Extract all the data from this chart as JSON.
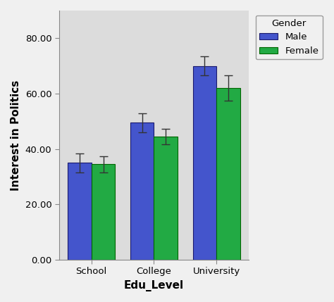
{
  "categories": [
    "School",
    "College",
    "University"
  ],
  "male_values": [
    35.0,
    49.5,
    70.0
  ],
  "female_values": [
    34.5,
    44.5,
    62.0
  ],
  "male_errors": [
    3.5,
    3.5,
    3.5
  ],
  "female_errors": [
    3.0,
    2.8,
    4.5
  ],
  "male_color": "#4455CC",
  "female_color": "#22AA44",
  "xlabel": "Edu_Level",
  "ylabel": "Interest in Politics",
  "ylim": [
    0,
    90
  ],
  "yticks": [
    0.0,
    20.0,
    40.0,
    60.0,
    80.0
  ],
  "ytick_labels": [
    "0.00",
    "20.00",
    "40.00",
    "60.00",
    "80.00"
  ],
  "legend_title": "Gender",
  "legend_labels": [
    "Male",
    "Female"
  ],
  "bar_width": 0.38,
  "plot_bg_color": "#DCDCDC",
  "fig_bg_color": "#F0F0F0",
  "bar_edge_color": "#1A1A6E",
  "female_edge_color": "#006600",
  "xlabel_fontsize": 11,
  "ylabel_fontsize": 11,
  "tick_fontsize": 9.5,
  "legend_fontsize": 9.5
}
